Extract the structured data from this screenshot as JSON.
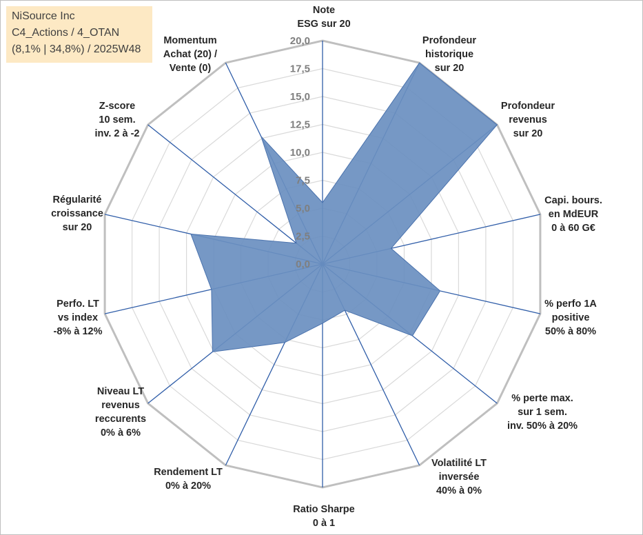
{
  "info_box": {
    "line1": "NiSource Inc",
    "line2": "C4_Actions / 4_OTAN",
    "line3": "(8,1% | 34,8%) / 2025W48"
  },
  "chart_data": {
    "type": "radar",
    "title": "",
    "r_min": 0,
    "r_max": 20,
    "r_step": 2.5,
    "tick_labels": [
      "0,0",
      "2,5",
      "5,0",
      "7,5",
      "10,0",
      "12,5",
      "15,0",
      "17,5",
      "20,0"
    ],
    "axes": [
      {
        "lines": [
          "Note",
          "ESG sur 20"
        ]
      },
      {
        "lines": [
          "Profondeur",
          "historique",
          "sur 20"
        ]
      },
      {
        "lines": [
          "Profondeur",
          "revenus",
          "sur 20"
        ]
      },
      {
        "lines": [
          "Capi. bours.",
          "en MdEUR",
          "0 à 60 G€"
        ]
      },
      {
        "lines": [
          "% perfo 1A",
          "positive",
          "50% à 80%"
        ]
      },
      {
        "lines": [
          "% perte max.",
          "sur 1 sem.",
          "inv. 50% à 20%"
        ]
      },
      {
        "lines": [
          "Volatilité LT",
          "inversée",
          "40% à 0%"
        ]
      },
      {
        "lines": [
          "Ratio Sharpe",
          "0 à 1"
        ]
      },
      {
        "lines": [
          "Rendement LT",
          "0% à 20%"
        ]
      },
      {
        "lines": [
          "Niveau LT",
          "revenus",
          "reccurents",
          "0% à 6%"
        ]
      },
      {
        "lines": [
          "Perfo. LT",
          "vs index",
          "-8% à 12%"
        ]
      },
      {
        "lines": [
          "Régularité",
          "croissance",
          "sur 20"
        ]
      },
      {
        "lines": [
          "Z-score",
          "10 sem.",
          "inv. 2 à -2"
        ]
      },
      {
        "lines": [
          "Momentum",
          "Achat (20) /",
          "Vente (0)"
        ]
      }
    ],
    "series": [
      {
        "name": "NiSource Inc",
        "values": [
          5.5,
          20.0,
          20.0,
          6.3,
          10.8,
          10.3,
          4.6,
          5.3,
          7.8,
          12.6,
          10.2,
          12.1,
          3.0,
          12.7
        ]
      }
    ],
    "colors": {
      "fill": "#6a8fc0",
      "stroke": "#4a72ad",
      "spoke": "#2f5da8",
      "grid": "#d9d9d9"
    }
  }
}
